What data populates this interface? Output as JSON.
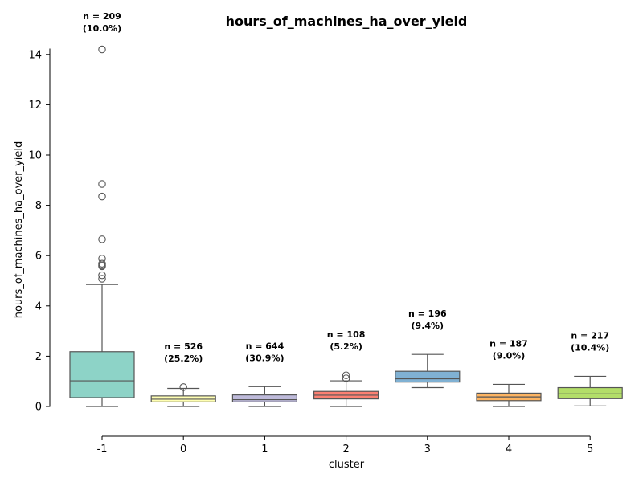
{
  "chart_data": {
    "type": "box",
    "title": "hours_of_machines_ha_over_yield",
    "xlabel": "cluster",
    "ylabel": "hours_of_machines_ha_over_yield",
    "ylim": [
      -1.2,
      14.2
    ],
    "yticks": [
      0,
      2,
      4,
      6,
      8,
      10,
      12,
      14
    ],
    "grid": false,
    "categories": [
      "-1",
      "0",
      "1",
      "2",
      "3",
      "4",
      "5"
    ],
    "boxes": [
      {
        "category": "-1",
        "color": "#8dd3c7",
        "whisker_low": 0.0,
        "q1": 0.35,
        "median": 1.02,
        "q3": 2.18,
        "whisker_high": 4.85,
        "outliers": [
          5.08,
          5.22,
          5.58,
          5.62,
          5.68,
          5.88,
          6.65,
          8.35,
          8.85,
          14.2
        ],
        "count_label": [
          "n = 209",
          "(10.0%)"
        ]
      },
      {
        "category": "0",
        "color": "#ffffb3",
        "whisker_low": 0.0,
        "q1": 0.18,
        "median": 0.29,
        "q3": 0.42,
        "whisker_high": 0.72,
        "outliers": [
          0.77
        ],
        "count_label": [
          "n = 526",
          "(25.2%)"
        ]
      },
      {
        "category": "1",
        "color": "#bebada",
        "whisker_low": 0.0,
        "q1": 0.18,
        "median": 0.27,
        "q3": 0.46,
        "whisker_high": 0.79,
        "outliers": [],
        "count_label": [
          "n = 644",
          "(30.9%)"
        ]
      },
      {
        "category": "2",
        "color": "#fb8072",
        "whisker_low": 0.0,
        "q1": 0.3,
        "median": 0.45,
        "q3": 0.6,
        "whisker_high": 1.02,
        "outliers": [
          1.12,
          1.24
        ],
        "count_label": [
          "n = 108",
          "(5.2%)"
        ]
      },
      {
        "category": "3",
        "color": "#80b1d3",
        "whisker_low": 0.75,
        "q1": 0.97,
        "median": 1.1,
        "q3": 1.4,
        "whisker_high": 2.07,
        "outliers": [],
        "count_label": [
          "n = 196",
          "(9.4%)"
        ]
      },
      {
        "category": "4",
        "color": "#fdb462",
        "whisker_low": 0.0,
        "q1": 0.23,
        "median": 0.38,
        "q3": 0.53,
        "whisker_high": 0.88,
        "outliers": [],
        "count_label": [
          "n = 187",
          "(9.0%)"
        ]
      },
      {
        "category": "5",
        "color": "#b3de69",
        "whisker_low": 0.02,
        "q1": 0.31,
        "median": 0.5,
        "q3": 0.75,
        "whisker_high": 1.2,
        "outliers": [],
        "count_label": [
          "n = 217",
          "(10.4%)"
        ]
      }
    ],
    "line_color": "#555555",
    "axis_color": "#000000"
  }
}
